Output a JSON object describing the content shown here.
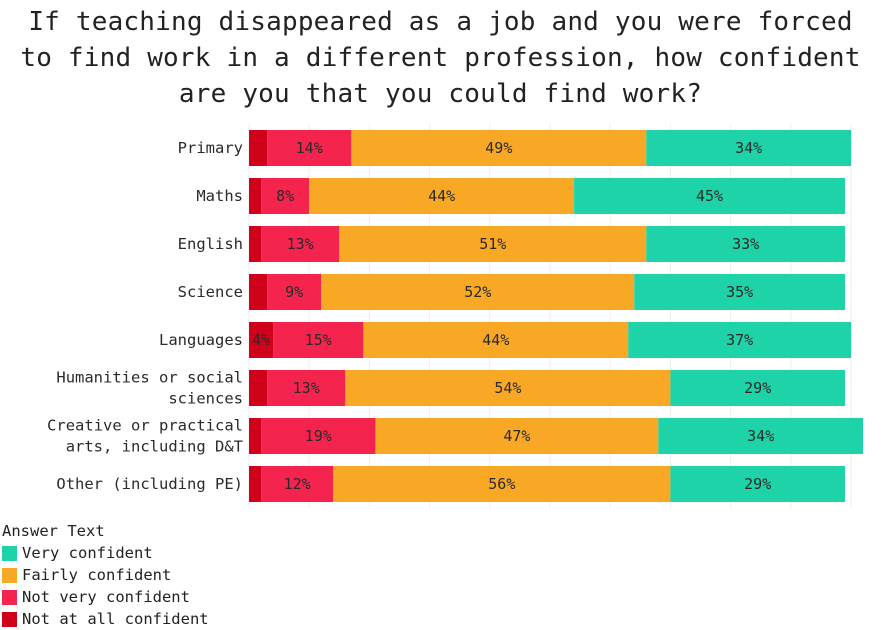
{
  "title_lines": [
    "If teaching disappeared as a job and you were forced",
    "to find work in a different profession, how confident",
    "are you that you could find work?"
  ],
  "legend": {
    "title": "Answer Text",
    "items": [
      {
        "label": "Very confident",
        "color": "#1dd3a7"
      },
      {
        "label": "Fairly confident",
        "color": "#f9a825"
      },
      {
        "label": "Not very confident",
        "color": "#f5244e"
      },
      {
        "label": "Not at all confident",
        "color": "#d0021b"
      }
    ]
  },
  "chart_data": {
    "type": "bar",
    "orientation": "horizontal",
    "stacked": true,
    "title": "If teaching disappeared as a job and you were forced to find work in a different profession, how confident are you that you could find work?",
    "categories": [
      [
        "Primary"
      ],
      [
        "Maths"
      ],
      [
        "English"
      ],
      [
        "Science"
      ],
      [
        "Languages"
      ],
      [
        "Humanities or social",
        "sciences"
      ],
      [
        "Creative or practical",
        "arts, including D&T"
      ],
      [
        "Other (including PE)"
      ]
    ],
    "series": [
      {
        "name": "Not at all confident",
        "color": "#d0021b",
        "values": [
          3,
          2,
          2,
          3,
          4,
          3,
          2,
          2
        ],
        "labels": [
          "",
          "",
          "",
          "",
          "4%",
          "",
          "",
          ""
        ]
      },
      {
        "name": "Not very confident",
        "color": "#f5244e",
        "values": [
          14,
          8,
          13,
          9,
          15,
          13,
          19,
          12
        ],
        "labels": [
          "14%",
          "8%",
          "13%",
          "9%",
          "15%",
          "13%",
          "19%",
          "12%"
        ]
      },
      {
        "name": "Fairly confident",
        "color": "#f9a825",
        "values": [
          49,
          44,
          51,
          52,
          44,
          54,
          47,
          56
        ],
        "labels": [
          "49%",
          "44%",
          "51%",
          "52%",
          "44%",
          "54%",
          "47%",
          "56%"
        ]
      },
      {
        "name": "Very confident",
        "color": "#1dd3a7",
        "values": [
          34,
          45,
          33,
          35,
          37,
          29,
          34,
          29
        ],
        "labels": [
          "34%",
          "45%",
          "33%",
          "35%",
          "37%",
          "29%",
          "34%",
          "29%"
        ]
      }
    ],
    "xlim": [
      0,
      100
    ],
    "grid": true,
    "legend_position": "bottom-left"
  }
}
